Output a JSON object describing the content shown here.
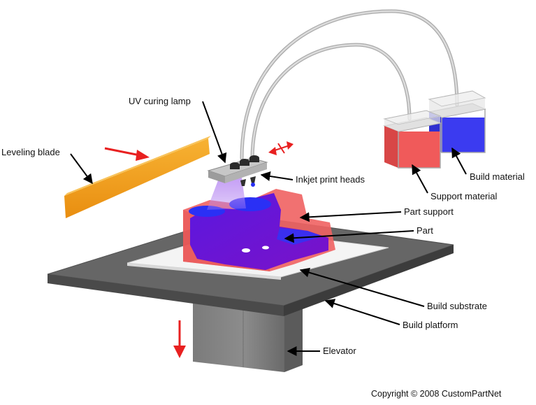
{
  "labels": {
    "uv_curing_lamp": "UV curing lamp",
    "leveling_blade": "Leveling blade",
    "inkjet_print_heads": "Inkjet print heads",
    "build_material": "Build material",
    "support_material": "Support material",
    "part_support": "Part support",
    "part": "Part",
    "build_substrate": "Build substrate",
    "build_platform": "Build platform",
    "elevator": "Elevator"
  },
  "copyright": "Copyright © 2008 CustomPartNet",
  "colors": {
    "build_material": "#3b3bf0",
    "support_material": "#f05a5a",
    "part": "#6a14d8",
    "part_support": "#f26a6a",
    "leveling_blade": "#f2a21a",
    "platform": "#5f5f5f",
    "motion_arrow": "#e82020"
  }
}
